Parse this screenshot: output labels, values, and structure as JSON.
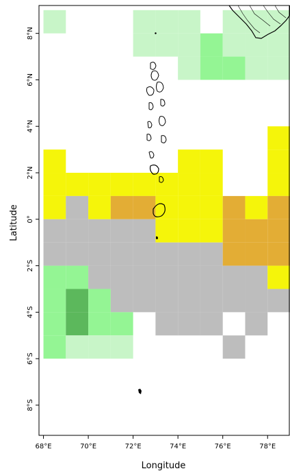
{
  "chart_data": {
    "type": "heatmap",
    "title": "",
    "xlabel": "Longitude",
    "ylabel": "Latitude",
    "xlim": [
      67.8,
      79.0
    ],
    "ylim": [
      -9.3,
      9.2
    ],
    "cell_size_deg": 1,
    "x_ticks": [
      {
        "value": 68,
        "label": "68°E"
      },
      {
        "value": 70,
        "label": "70°E"
      },
      {
        "value": 72,
        "label": "72°E"
      },
      {
        "value": 74,
        "label": "74°E"
      },
      {
        "value": 76,
        "label": "76°E"
      },
      {
        "value": 78,
        "label": "78°E"
      }
    ],
    "y_ticks": [
      {
        "value": 8,
        "label": "8°N"
      },
      {
        "value": 6,
        "label": "6°N"
      },
      {
        "value": 4,
        "label": "4°N"
      },
      {
        "value": 2,
        "label": "2°N"
      },
      {
        "value": 0,
        "label": "0°"
      },
      {
        "value": -2,
        "label": "2°S"
      },
      {
        "value": -4,
        "label": "4°S"
      },
      {
        "value": -6,
        "label": "6°S"
      },
      {
        "value": -8,
        "label": "8°S"
      }
    ],
    "category_colors": {
      "Y": "#f5f50a",
      "O": "#e3ad35",
      "R": "#d6772b",
      "G": "#bdbdbd",
      "L": "#c8f5c8",
      "M": "#94f594",
      "D": "#5cb85c"
    },
    "rows": [
      {
        "lat": 9.0,
        "cells": "..............."
      },
      {
        "lat": 8.5,
        "cells": "L...LLL.LLLDD.LLL"
      },
      {
        "lat": 7.5,
        "cells": "....LLLMLLL..LLM"
      },
      {
        "lat": 6.5,
        "cells": "......LMMLL...G."
      },
      {
        "lat": 5.5,
        "cells": "..............G."
      },
      {
        "lat": 4.5,
        "cells": "................"
      },
      {
        "lat": 3.5,
        "cells": "..........YYYY.."
      },
      {
        "lat": 2.5,
        "cells": "Y.....YY..YYYY.."
      },
      {
        "lat": 1.5,
        "cells": "YYYYYYYY..YYYYY."
      },
      {
        "lat": 0.5,
        "cells": "YGYOOYYYOYOOOOO."
      },
      {
        "lat": -0.5,
        "cells": "GGGGGYYYOOOOORR."
      },
      {
        "lat": -1.5,
        "cells": "GGGGGGGGOOOOOOOY"
      },
      {
        "lat": -2.5,
        "cells": "MMGGGGGGGGYYYYYY"
      },
      {
        "lat": -3.5,
        "cells": "MDMGGGGGGGGG...."
      },
      {
        "lat": -4.5,
        "cells": "MDMM.GGG.G..Y...."
      },
      {
        "lat": -5.5,
        "cells": "MLLL....G...Y....."
      }
    ]
  }
}
